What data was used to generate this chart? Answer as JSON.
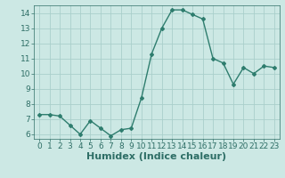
{
  "title": "",
  "xlabel": "Humidex (Indice chaleur)",
  "ylabel": "",
  "x": [
    0,
    1,
    2,
    3,
    4,
    5,
    6,
    7,
    8,
    9,
    10,
    11,
    12,
    13,
    14,
    15,
    16,
    17,
    18,
    19,
    20,
    21,
    22,
    23
  ],
  "y": [
    7.3,
    7.3,
    7.2,
    6.6,
    6.0,
    6.9,
    6.4,
    5.9,
    6.3,
    6.4,
    8.4,
    11.3,
    13.0,
    14.2,
    14.2,
    13.9,
    13.6,
    11.0,
    10.7,
    9.3,
    10.4,
    10.0,
    10.5,
    10.4
  ],
  "line_color": "#2e7d6e",
  "marker": "D",
  "marker_size": 2,
  "bg_color": "#cce8e4",
  "grid_color": "#aacfcb",
  "ylim": [
    5.7,
    14.5
  ],
  "yticks": [
    6,
    7,
    8,
    9,
    10,
    11,
    12,
    13,
    14
  ],
  "xlim": [
    -0.5,
    23.5
  ],
  "xticks": [
    0,
    1,
    2,
    3,
    4,
    5,
    6,
    7,
    8,
    9,
    10,
    11,
    12,
    13,
    14,
    15,
    16,
    17,
    18,
    19,
    20,
    21,
    22,
    23
  ],
  "tick_label_fontsize": 6.5,
  "xlabel_fontsize": 8,
  "label_color": "#2e6e66"
}
